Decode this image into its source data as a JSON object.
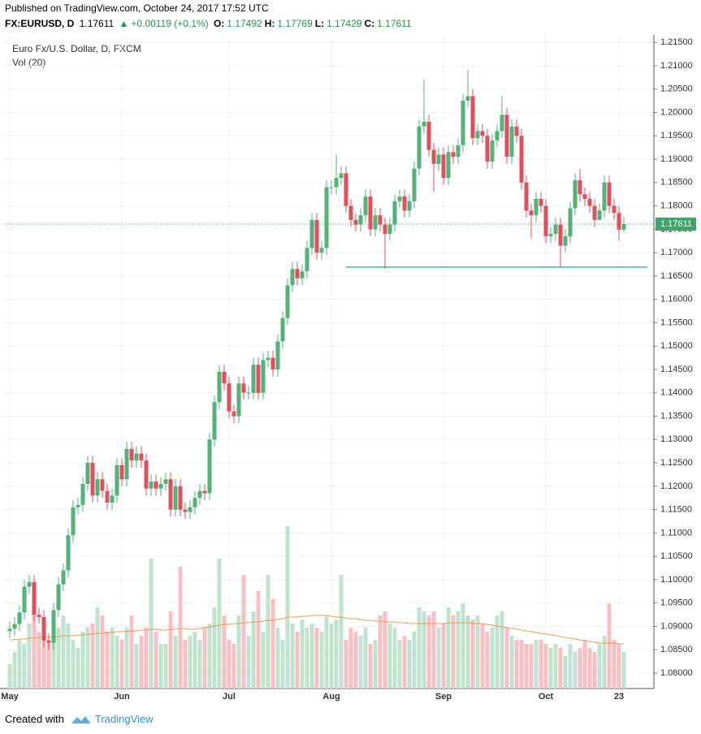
{
  "header": {
    "published": "Published on TradingView.com, October 24, 2017 17:52 UTC",
    "symbol": "FX:EURUSD, D",
    "price": "1.17611",
    "arrow": "▲",
    "change": "+0.00119 (+0.1%)",
    "ohlc": [
      {
        "key": "O:",
        "value": "1.17492"
      },
      {
        "key": "H:",
        "value": "1.17769"
      },
      {
        "key": "L:",
        "value": "1.17429"
      },
      {
        "key": "C:",
        "value": "1.17611"
      }
    ]
  },
  "footer": {
    "created": "Created with",
    "brand": "TradingView"
  },
  "chart_data": {
    "type": "candlestick",
    "categories": [
      "May",
      null,
      null,
      null,
      null,
      null,
      null,
      null,
      null,
      null,
      null,
      null,
      null,
      null,
      null,
      null,
      null,
      null,
      null,
      null,
      null,
      null,
      null,
      "Jun",
      null,
      null,
      null,
      null,
      null,
      null,
      null,
      null,
      null,
      null,
      null,
      null,
      null,
      null,
      null,
      null,
      null,
      null,
      null,
      null,
      null,
      "Jul",
      null,
      null,
      null,
      null,
      null,
      null,
      null,
      null,
      null,
      null,
      null,
      null,
      null,
      null,
      null,
      null,
      null,
      null,
      null,
      null,
      "Aug",
      null,
      null,
      null,
      null,
      null,
      null,
      null,
      null,
      null,
      null,
      null,
      null,
      null,
      null,
      null,
      null,
      null,
      null,
      null,
      null,
      null,
      null,
      "Sep",
      null,
      null,
      null,
      null,
      null,
      null,
      null,
      null,
      null,
      null,
      null,
      null,
      null,
      null,
      null,
      null,
      null,
      null,
      null,
      null,
      "Oct",
      null,
      null,
      null,
      null,
      null,
      null,
      null,
      null,
      null,
      null,
      null,
      null,
      null,
      null,
      "23",
      null
    ],
    "series": [
      {
        "name": "Euro Fx/U.S. Dollar, D, FXCM",
        "up_color": "#53b27a",
        "down_color": "#e0505c",
        "open": [
          1.089,
          1.0895,
          1.0905,
          1.093,
          1.0985,
          1.0995,
          1.0925,
          1.092,
          1.087,
          1.0865,
          1.0935,
          1.099,
          1.102,
          1.1095,
          1.1155,
          1.116,
          1.1205,
          1.125,
          1.118,
          1.1215,
          1.119,
          1.1165,
          1.118,
          1.1245,
          1.1215,
          1.128,
          1.1255,
          1.127,
          1.1255,
          1.1195,
          1.121,
          1.1195,
          1.1205,
          1.1215,
          1.115,
          1.12,
          1.115,
          1.1145,
          1.1155,
          1.1175,
          1.119,
          1.1185,
          1.13,
          1.138,
          1.1445,
          1.142,
          1.136,
          1.135,
          1.142,
          1.14,
          1.14,
          1.146,
          1.14,
          1.147,
          1.1475,
          1.145,
          1.151,
          1.156,
          1.163,
          1.1665,
          1.1645,
          1.166,
          1.171,
          1.177,
          1.17,
          1.171,
          1.184,
          1.184,
          1.186,
          1.187,
          1.18,
          1.177,
          1.176,
          1.178,
          1.182,
          1.175,
          1.178,
          1.176,
          1.174,
          1.176,
          1.181,
          1.182,
          1.179,
          1.181,
          1.188,
          1.197,
          1.198,
          1.192,
          1.189,
          1.191,
          1.186,
          1.1915,
          1.1905,
          1.193,
          1.2025,
          1.2035,
          1.1945,
          1.196,
          1.195,
          1.1895,
          1.194,
          1.196,
          1.1995,
          1.1905,
          1.197,
          1.195,
          1.185,
          1.179,
          1.178,
          1.1815,
          1.18,
          1.1735,
          1.174,
          1.176,
          1.1715,
          1.1735,
          1.1795,
          1.1855,
          1.1825,
          1.1815,
          1.18,
          1.177,
          1.179,
          1.185,
          1.18,
          1.1785,
          1.17492
        ],
        "high": [
          1.091,
          1.092,
          1.0945,
          1.1,
          1.101,
          1.101,
          1.094,
          1.0935,
          1.0885,
          1.095,
          1.1005,
          1.1035,
          1.111,
          1.117,
          1.1175,
          1.122,
          1.1265,
          1.1265,
          1.123,
          1.123,
          1.1205,
          1.1195,
          1.126,
          1.126,
          1.1295,
          1.1295,
          1.1285,
          1.1285,
          1.127,
          1.1225,
          1.1225,
          1.122,
          1.123,
          1.123,
          1.1215,
          1.1215,
          1.1165,
          1.117,
          1.119,
          1.1205,
          1.1205,
          1.1315,
          1.1395,
          1.146,
          1.146,
          1.1435,
          1.1375,
          1.1435,
          1.1435,
          1.1415,
          1.1475,
          1.1475,
          1.1485,
          1.149,
          1.149,
          1.1525,
          1.1575,
          1.1645,
          1.168,
          1.168,
          1.1675,
          1.1725,
          1.1785,
          1.1785,
          1.1725,
          1.1855,
          1.1855,
          1.191,
          1.1885,
          1.1885,
          1.1815,
          1.1785,
          1.1795,
          1.1835,
          1.1835,
          1.1795,
          1.1795,
          1.1775,
          1.1775,
          1.1825,
          1.1835,
          1.1835,
          1.1825,
          1.1895,
          1.1985,
          1.207,
          1.1995,
          1.1935,
          1.1925,
          1.1925,
          1.193,
          1.193,
          1.1945,
          1.204,
          1.2092,
          1.205,
          1.1975,
          1.1975,
          1.1965,
          1.1955,
          1.1975,
          1.2035,
          1.201,
          1.1985,
          1.1985,
          1.1965,
          1.1865,
          1.1805,
          1.183,
          1.183,
          1.1815,
          1.1755,
          1.1775,
          1.1775,
          1.175,
          1.181,
          1.187,
          1.188,
          1.184,
          1.183,
          1.1815,
          1.1805,
          1.1865,
          1.1865,
          1.1815,
          1.18,
          1.17769
        ],
        "low": [
          1.0875,
          1.088,
          1.089,
          1.0915,
          1.097,
          1.091,
          1.0905,
          1.0855,
          1.085,
          1.085,
          1.092,
          1.0975,
          1.1005,
          1.108,
          1.114,
          1.1145,
          1.119,
          1.1165,
          1.1165,
          1.1175,
          1.115,
          1.115,
          1.1165,
          1.12,
          1.12,
          1.124,
          1.124,
          1.124,
          1.118,
          1.118,
          1.118,
          1.118,
          1.119,
          1.1135,
          1.1135,
          1.1135,
          1.113,
          1.113,
          1.114,
          1.116,
          1.117,
          1.117,
          1.1285,
          1.1365,
          1.1405,
          1.1345,
          1.1335,
          1.1335,
          1.1385,
          1.1385,
          1.1385,
          1.1385,
          1.1385,
          1.1455,
          1.1435,
          1.1435,
          1.1495,
          1.1545,
          1.1615,
          1.163,
          1.163,
          1.1645,
          1.1695,
          1.1685,
          1.1685,
          1.1695,
          1.1825,
          1.1825,
          1.1845,
          1.1785,
          1.1755,
          1.1745,
          1.1745,
          1.1765,
          1.1735,
          1.1735,
          1.1745,
          1.1665,
          1.1725,
          1.1745,
          1.1795,
          1.1775,
          1.1775,
          1.1795,
          1.1865,
          1.1955,
          1.1905,
          1.183,
          1.1875,
          1.1845,
          1.1845,
          1.189,
          1.189,
          1.1915,
          1.201,
          1.193,
          1.193,
          1.1935,
          1.188,
          1.188,
          1.1925,
          1.1945,
          1.189,
          1.189,
          1.1935,
          1.1835,
          1.1775,
          1.173,
          1.1765,
          1.1785,
          1.172,
          1.172,
          1.1725,
          1.167,
          1.17,
          1.172,
          1.178,
          1.181,
          1.18,
          1.1785,
          1.1755,
          1.1775,
          1.1775,
          1.1785,
          1.177,
          1.1725,
          1.17429
        ],
        "close": [
          1.0895,
          1.0905,
          1.093,
          1.0985,
          1.0995,
          1.0925,
          1.092,
          1.087,
          1.0865,
          1.0935,
          1.099,
          1.102,
          1.1095,
          1.1155,
          1.116,
          1.1205,
          1.125,
          1.118,
          1.1215,
          1.119,
          1.1165,
          1.118,
          1.1245,
          1.1215,
          1.128,
          1.1255,
          1.127,
          1.1255,
          1.1195,
          1.121,
          1.1195,
          1.1205,
          1.1215,
          1.115,
          1.12,
          1.115,
          1.1145,
          1.1155,
          1.1175,
          1.119,
          1.1185,
          1.13,
          1.138,
          1.1445,
          1.142,
          1.136,
          1.135,
          1.142,
          1.14,
          1.14,
          1.146,
          1.14,
          1.147,
          1.1475,
          1.145,
          1.151,
          1.156,
          1.163,
          1.1665,
          1.1645,
          1.166,
          1.171,
          1.177,
          1.17,
          1.171,
          1.184,
          1.184,
          1.186,
          1.187,
          1.18,
          1.177,
          1.176,
          1.178,
          1.182,
          1.175,
          1.178,
          1.176,
          1.174,
          1.176,
          1.181,
          1.182,
          1.179,
          1.181,
          1.188,
          1.197,
          1.198,
          1.192,
          1.189,
          1.191,
          1.186,
          1.1915,
          1.1905,
          1.193,
          1.2025,
          1.2035,
          1.1945,
          1.196,
          1.195,
          1.1895,
          1.194,
          1.196,
          1.1995,
          1.1905,
          1.197,
          1.195,
          1.185,
          1.179,
          1.178,
          1.1815,
          1.18,
          1.1735,
          1.174,
          1.176,
          1.1715,
          1.1735,
          1.1795,
          1.1855,
          1.1825,
          1.1815,
          1.18,
          1.177,
          1.179,
          1.185,
          1.18,
          1.1785,
          1.17492,
          1.17611
        ]
      }
    ],
    "volume": {
      "name": "Vol (20)",
      "up_color": "#bfe3cf",
      "down_color": "#f8c0c4",
      "ma_color": "#f49b47",
      "vlim": [
        0,
        210
      ],
      "values": [
        30,
        45,
        60,
        55,
        80,
        95,
        70,
        80,
        60,
        75,
        75,
        90,
        80,
        60,
        50,
        70,
        75,
        80,
        100,
        90,
        70,
        75,
        65,
        60,
        75,
        90,
        55,
        65,
        75,
        160,
        70,
        55,
        55,
        95,
        65,
        150,
        60,
        65,
        70,
        60,
        75,
        80,
        100,
        160,
        90,
        60,
        55,
        90,
        140,
        65,
        95,
        120,
        70,
        140,
        110,
        75,
        60,
        200,
        80,
        70,
        85,
        75,
        80,
        75,
        70,
        90,
        80,
        85,
        140,
        60,
        75,
        70,
        65,
        75,
        55,
        60,
        90,
        95,
        80,
        75,
        60,
        65,
        60,
        70,
        100,
        95,
        90,
        95,
        75,
        80,
        100,
        90,
        95,
        105,
        90,
        85,
        90,
        80,
        70,
        75,
        90,
        95,
        75,
        65,
        60,
        60,
        55,
        55,
        60,
        60,
        55,
        50,
        55,
        50,
        40,
        55,
        45,
        50,
        60,
        50,
        45,
        55,
        65,
        105,
        60,
        55,
        45
      ],
      "ma": [
        60,
        60,
        61,
        61,
        62,
        62,
        63,
        63,
        63,
        64,
        64,
        65,
        65,
        65,
        66,
        66,
        67,
        67,
        68,
        68,
        69,
        69,
        70,
        70,
        70,
        71,
        71,
        72,
        72,
        73,
        73,
        72,
        72,
        73,
        73,
        74,
        74,
        73,
        73,
        74,
        75,
        76,
        77,
        78,
        79,
        79,
        80,
        80,
        81,
        81,
        82,
        82,
        83,
        84,
        84,
        85,
        86,
        88,
        88,
        88,
        89,
        89,
        90,
        90,
        90,
        90,
        89,
        88,
        88,
        87,
        86,
        86,
        85,
        84,
        84,
        83,
        83,
        82,
        82,
        82,
        81,
        81,
        80,
        80,
        80,
        80,
        80,
        80,
        80,
        80,
        81,
        81,
        81,
        81,
        81,
        80,
        80,
        80,
        79,
        78,
        77,
        76,
        75,
        74,
        73,
        72,
        71,
        70,
        69,
        68,
        67,
        66,
        65,
        64,
        63,
        62,
        61,
        60,
        59,
        58,
        57,
        56,
        56,
        56,
        56,
        55,
        55
      ]
    },
    "ylim": [
      1.0767,
      1.2166
    ],
    "yticks": [
      {
        "value": 1.08,
        "label": "1.08000"
      },
      {
        "value": 1.085,
        "label": "1.08500"
      },
      {
        "value": 1.09,
        "label": "1.09000"
      },
      {
        "value": 1.095,
        "label": "1.09500"
      },
      {
        "value": 1.1,
        "label": "1.10000"
      },
      {
        "value": 1.105,
        "label": "1.10500"
      },
      {
        "value": 1.11,
        "label": "1.11000"
      },
      {
        "value": 1.115,
        "label": "1.11500"
      },
      {
        "value": 1.12,
        "label": "1.12000"
      },
      {
        "value": 1.125,
        "label": "1.12500"
      },
      {
        "value": 1.13,
        "label": "1.13000"
      },
      {
        "value": 1.135,
        "label": "1.13500"
      },
      {
        "value": 1.14,
        "label": "1.14000"
      },
      {
        "value": 1.145,
        "label": "1.14500"
      },
      {
        "value": 1.15,
        "label": "1.15000"
      },
      {
        "value": 1.155,
        "label": "1.15500"
      },
      {
        "value": 1.16,
        "label": "1.16000"
      },
      {
        "value": 1.165,
        "label": "1.16500"
      },
      {
        "value": 1.17,
        "label": "1.17000"
      },
      {
        "value": 1.175,
        "label": "1.17500"
      },
      {
        "value": 1.18,
        "label": "1.18000"
      },
      {
        "value": 1.185,
        "label": "1.18500"
      },
      {
        "value": 1.19,
        "label": "1.19000"
      },
      {
        "value": 1.195,
        "label": "1.19500"
      },
      {
        "value": 1.2,
        "label": "1.20000"
      },
      {
        "value": 1.205,
        "label": "1.20500"
      },
      {
        "value": 1.21,
        "label": "1.21000"
      },
      {
        "value": 1.215,
        "label": "1.21500"
      }
    ],
    "grid": true,
    "price_line": {
      "value": 1.17611,
      "label": "1.17611",
      "color": "#3fa56a"
    },
    "trendline": {
      "value": 1.1669,
      "from": 69,
      "color": "#2a9d94"
    }
  }
}
